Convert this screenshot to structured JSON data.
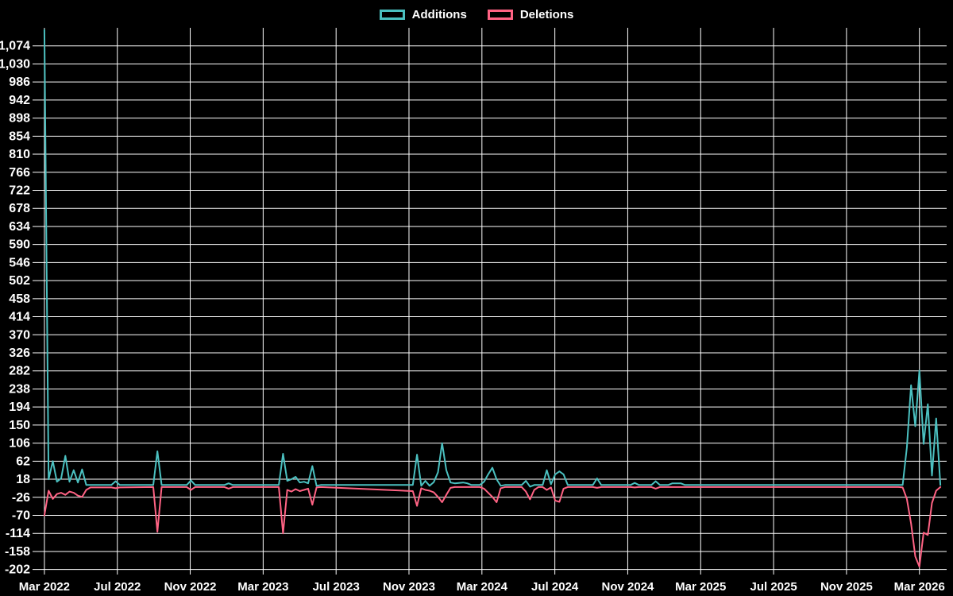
{
  "page": {
    "background_color": "#000000",
    "text_color": "#ffffff",
    "grid_color": "#ffffff"
  },
  "chart_data": {
    "type": "line",
    "title": "",
    "legend_position": "top",
    "grid": true,
    "x_axis_unit": "weeks (weekly points, Mar 2022 - Mar 2026)",
    "xlim": [
      -1.5,
      215.5
    ],
    "ylim": [
      -222,
      1118
    ],
    "x_ticks": [
      {
        "week": 0,
        "label": "Mar 2022"
      },
      {
        "week": 17.42,
        "label": "Jul 2022"
      },
      {
        "week": 34.83,
        "label": "Nov 2022"
      },
      {
        "week": 52.25,
        "label": "Mar 2023"
      },
      {
        "week": 69.67,
        "label": "Jul 2023"
      },
      {
        "week": 87.08,
        "label": "Nov 2023"
      },
      {
        "week": 104.5,
        "label": "Mar 2024"
      },
      {
        "week": 121.92,
        "label": "Jul 2024"
      },
      {
        "week": 139.33,
        "label": "Nov 2024"
      },
      {
        "week": 156.75,
        "label": "Mar 2025"
      },
      {
        "week": 174.17,
        "label": "Jul 2025"
      },
      {
        "week": 191.58,
        "label": "Nov 2025"
      },
      {
        "week": 209,
        "label": "Mar 2026"
      }
    ],
    "y_ticks": [
      -202,
      -158,
      -114,
      -70,
      -26,
      18,
      62,
      106,
      150,
      194,
      238,
      282,
      326,
      370,
      414,
      458,
      502,
      546,
      590,
      634,
      678,
      722,
      766,
      810,
      854,
      898,
      942,
      986,
      1030,
      1074
    ],
    "series": [
      {
        "name": "Additions",
        "color": "#4bc0c0",
        "points": [
          [
            0,
            1113
          ],
          [
            1,
            18
          ],
          [
            2,
            62
          ],
          [
            3,
            12
          ],
          [
            4,
            20
          ],
          [
            5,
            75
          ],
          [
            6,
            12
          ],
          [
            7,
            40
          ],
          [
            8,
            10
          ],
          [
            9,
            42
          ],
          [
            10,
            4
          ],
          [
            16,
            4
          ],
          [
            17,
            13
          ],
          [
            18,
            4
          ],
          [
            26,
            4
          ],
          [
            27,
            86
          ],
          [
            28,
            4
          ],
          [
            34,
            4
          ],
          [
            35,
            15
          ],
          [
            36,
            4
          ],
          [
            43,
            4
          ],
          [
            44,
            8
          ],
          [
            45,
            4
          ],
          [
            56,
            4
          ],
          [
            57,
            80
          ],
          [
            58,
            14
          ],
          [
            59,
            18
          ],
          [
            60,
            24
          ],
          [
            61,
            10
          ],
          [
            62,
            12
          ],
          [
            63,
            8
          ],
          [
            64,
            50
          ],
          [
            65,
            2
          ],
          [
            66,
            4
          ],
          [
            88,
            4
          ],
          [
            89,
            78
          ],
          [
            90,
            2
          ],
          [
            91,
            14
          ],
          [
            92,
            2
          ],
          [
            93,
            11
          ],
          [
            94,
            35
          ],
          [
            95,
            106
          ],
          [
            96,
            40
          ],
          [
            97,
            10
          ],
          [
            98,
            8
          ],
          [
            100,
            10
          ],
          [
            101,
            8
          ],
          [
            102,
            4
          ],
          [
            104,
            4
          ],
          [
            105,
            12
          ],
          [
            106,
            30
          ],
          [
            107,
            46
          ],
          [
            108,
            18
          ],
          [
            109,
            2
          ],
          [
            110,
            4
          ],
          [
            114,
            4
          ],
          [
            115,
            14
          ],
          [
            116,
            0
          ],
          [
            117,
            4
          ],
          [
            119,
            4
          ],
          [
            120,
            40
          ],
          [
            121,
            6
          ],
          [
            122,
            30
          ],
          [
            123,
            37
          ],
          [
            124,
            30
          ],
          [
            125,
            4
          ],
          [
            131,
            4
          ],
          [
            132,
            20
          ],
          [
            133,
            4
          ],
          [
            140,
            4
          ],
          [
            141,
            9
          ],
          [
            142,
            4
          ],
          [
            145,
            4
          ],
          [
            146,
            13
          ],
          [
            147,
            4
          ],
          [
            149,
            4
          ],
          [
            150,
            8
          ],
          [
            152,
            8
          ],
          [
            153,
            4
          ],
          [
            204,
            4
          ],
          [
            205,
            4
          ],
          [
            206,
            95
          ],
          [
            207,
            247
          ],
          [
            208,
            147
          ],
          [
            209,
            283
          ],
          [
            210,
            104
          ],
          [
            211,
            201
          ],
          [
            212,
            27
          ],
          [
            213,
            166
          ],
          [
            214,
            4
          ]
        ]
      },
      {
        "name": "Deletions",
        "color": "#ff6384",
        "points": [
          [
            0,
            -70
          ],
          [
            1,
            -10
          ],
          [
            2,
            -30
          ],
          [
            3,
            -18
          ],
          [
            4,
            -15
          ],
          [
            5,
            -20
          ],
          [
            6,
            -12
          ],
          [
            7,
            -15
          ],
          [
            8,
            -22
          ],
          [
            9,
            -25
          ],
          [
            10,
            -8
          ],
          [
            11,
            -2
          ],
          [
            16,
            -2
          ],
          [
            17,
            -4
          ],
          [
            18,
            -2
          ],
          [
            26,
            -1
          ],
          [
            27,
            -110
          ],
          [
            28,
            -1
          ],
          [
            34,
            -1
          ],
          [
            35,
            -8
          ],
          [
            36,
            -1
          ],
          [
            43,
            -1
          ],
          [
            44,
            -5
          ],
          [
            45,
            -1
          ],
          [
            56,
            -1
          ],
          [
            57,
            -114
          ],
          [
            58,
            -8
          ],
          [
            59,
            -12
          ],
          [
            60,
            -6
          ],
          [
            61,
            -11
          ],
          [
            62,
            -8
          ],
          [
            63,
            -5
          ],
          [
            64,
            -44
          ],
          [
            65,
            -2
          ],
          [
            66,
            -1
          ],
          [
            88,
            -11
          ],
          [
            89,
            -47
          ],
          [
            90,
            -4
          ],
          [
            91,
            -8
          ],
          [
            92,
            -10
          ],
          [
            93,
            -14
          ],
          [
            94,
            -25
          ],
          [
            95,
            -38
          ],
          [
            96,
            -20
          ],
          [
            97,
            -3
          ],
          [
            98,
            -1
          ],
          [
            104,
            -1
          ],
          [
            105,
            -5
          ],
          [
            106,
            -15
          ],
          [
            107,
            -25
          ],
          [
            108,
            -38
          ],
          [
            109,
            -4
          ],
          [
            110,
            -1
          ],
          [
            114,
            -1
          ],
          [
            115,
            -12
          ],
          [
            116,
            -31
          ],
          [
            117,
            -8
          ],
          [
            118,
            -1
          ],
          [
            119,
            -1
          ],
          [
            120,
            -8
          ],
          [
            121,
            -2
          ],
          [
            122,
            -34
          ],
          [
            123,
            -37
          ],
          [
            124,
            -5
          ],
          [
            125,
            -1
          ],
          [
            131,
            -1
          ],
          [
            132,
            -3
          ],
          [
            133,
            -1
          ],
          [
            140,
            -1
          ],
          [
            141,
            -2
          ],
          [
            142,
            -1
          ],
          [
            145,
            -1
          ],
          [
            146,
            -5
          ],
          [
            147,
            -1
          ],
          [
            149,
            -1
          ],
          [
            152,
            -1
          ],
          [
            204,
            -1
          ],
          [
            205,
            -2
          ],
          [
            206,
            -30
          ],
          [
            207,
            -90
          ],
          [
            208,
            -170
          ],
          [
            209,
            -195
          ],
          [
            210,
            -112
          ],
          [
            211,
            -118
          ],
          [
            212,
            -40
          ],
          [
            213,
            -10
          ],
          [
            214,
            -1
          ]
        ]
      }
    ]
  }
}
